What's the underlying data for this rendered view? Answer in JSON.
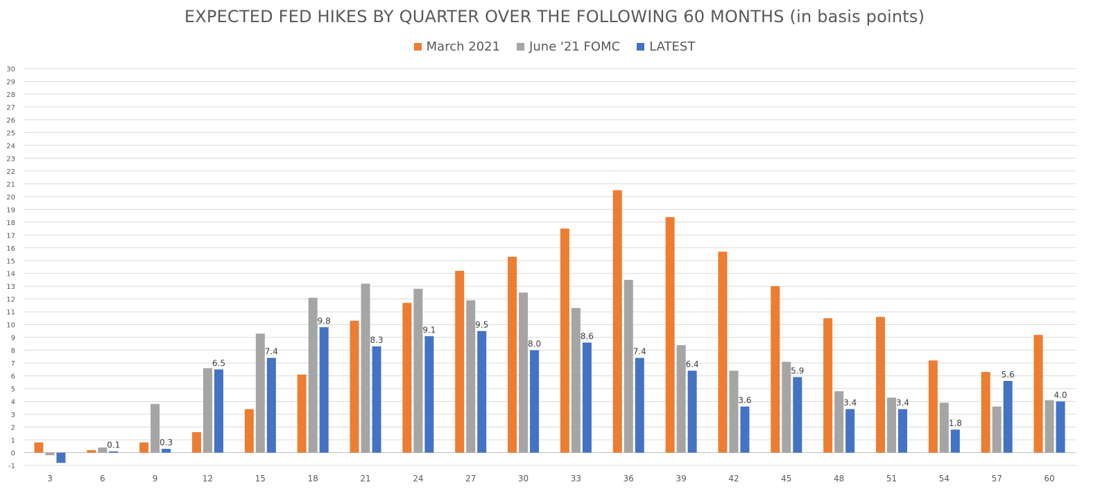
{
  "chart_data": {
    "type": "bar",
    "title": "EXPECTED FED HIKES BY QUARTER OVER THE FOLLOWING 60 MONTHS (in basis points)",
    "xlabel": "",
    "ylabel": "",
    "categories": [
      "3",
      "6",
      "9",
      "12",
      "15",
      "18",
      "21",
      "24",
      "27",
      "30",
      "33",
      "36",
      "39",
      "42",
      "45",
      "48",
      "51",
      "54",
      "57",
      "60"
    ],
    "ylim": [
      -1,
      30
    ],
    "yticks": [
      -1,
      0,
      1,
      2,
      3,
      4,
      5,
      6,
      7,
      8,
      9,
      10,
      11,
      12,
      13,
      14,
      15,
      16,
      17,
      18,
      19,
      20,
      21,
      22,
      23,
      24,
      25,
      26,
      27,
      28,
      29,
      30
    ],
    "grid": true,
    "legend_position": "top-center",
    "series": [
      {
        "name": "March 2021",
        "color": "#ED7D31",
        "values": [
          0.8,
          0.2,
          0.8,
          1.6,
          3.4,
          6.1,
          10.3,
          11.7,
          14.2,
          15.3,
          17.5,
          20.5,
          18.4,
          15.7,
          13.0,
          10.5,
          10.6,
          7.2,
          6.3,
          9.2
        ]
      },
      {
        "name": "June '21 FOMC",
        "color": "#A5A5A5",
        "values": [
          -0.2,
          0.4,
          3.8,
          6.6,
          9.3,
          12.1,
          13.2,
          12.8,
          11.9,
          12.5,
          11.3,
          13.5,
          8.4,
          6.4,
          7.1,
          4.8,
          4.3,
          3.9,
          3.6,
          4.1
        ]
      },
      {
        "name": "LATEST",
        "color": "#4472C4",
        "values": [
          -0.8,
          0.1,
          0.3,
          6.5,
          7.4,
          9.8,
          8.3,
          9.1,
          9.5,
          8.0,
          8.6,
          7.4,
          6.4,
          3.6,
          5.9,
          3.4,
          3.4,
          1.8,
          5.6,
          4.0
        ],
        "data_labels": [
          "",
          "0.1",
          "0.3",
          "6.5",
          "7.4",
          "9.8",
          "8.3",
          "9.1",
          "9.5",
          "8.0",
          "8.6",
          "7.4",
          "6.4",
          "3.6",
          "5.9",
          "3.4",
          "3.4",
          "1.8",
          "5.6",
          "4.0"
        ]
      }
    ]
  }
}
